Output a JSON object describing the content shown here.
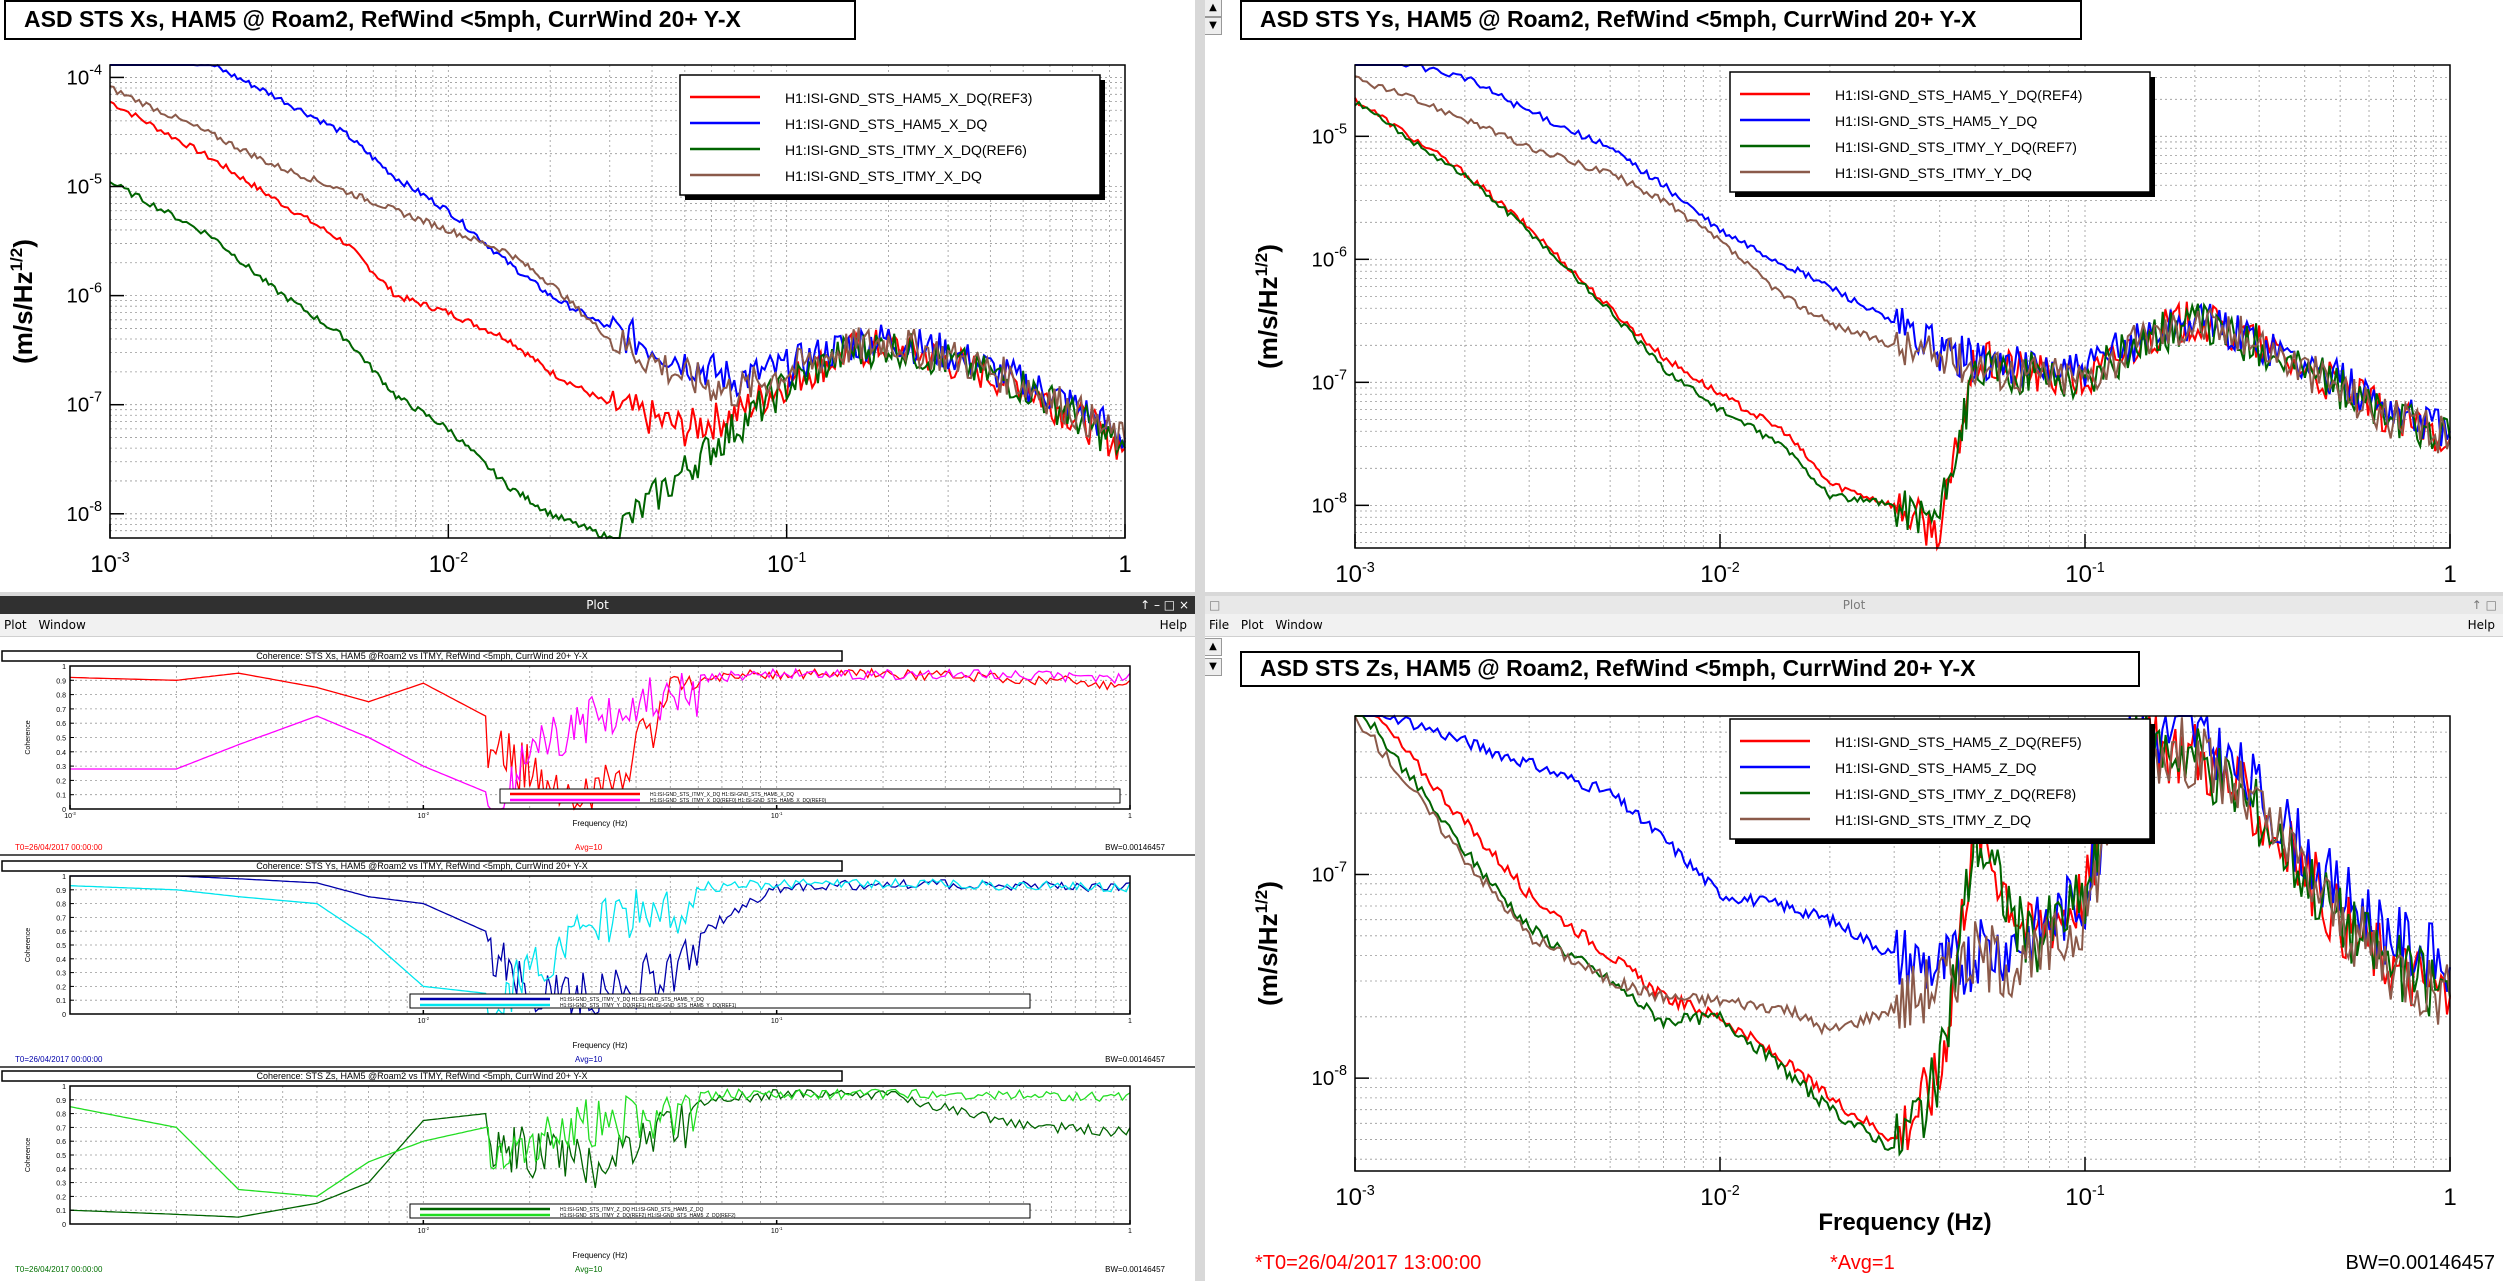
{
  "top_left": {
    "title": "ASD STS Xs, HAM5 @ Roam2, RefWind <5mph, CurrWind 20+ Y-X",
    "ylabel": "(m/s/Hz^1/2)",
    "yticks": [
      "10-4",
      "10-5",
      "10-6",
      "10-7",
      "10-8"
    ],
    "xticks": [
      "10-3",
      "10-2",
      "10-1",
      "1"
    ],
    "legend": [
      "H1:ISI-GND_STS_HAM5_X_DQ(REF3)",
      "H1:ISI-GND_STS_HAM5_X_DQ",
      "H1:ISI-GND_STS_ITMY_X_DQ(REF6)",
      "H1:ISI-GND_STS_ITMY_X_DQ"
    ]
  },
  "top_right": {
    "title": "ASD STS Ys, HAM5 @ Roam2, RefWind <5mph, CurrWind 20+ Y-X",
    "ylabel": "(m/s/Hz^1/2)",
    "yticks": [
      "10-5",
      "10-6",
      "10-7",
      "10-8"
    ],
    "xticks": [
      "10-3",
      "10-2",
      "10-1",
      "1"
    ],
    "legend": [
      "H1:ISI-GND_STS_HAM5_Y_DQ(REF4)",
      "H1:ISI-GND_STS_HAM5_Y_DQ",
      "H1:ISI-GND_STS_ITMY_Y_DQ(REF7)",
      "H1:ISI-GND_STS_ITMY_Y_DQ"
    ]
  },
  "bottom_left": {
    "window_title": "Plot",
    "menu": [
      "Plot",
      "Window"
    ],
    "help": "Help",
    "ylabel": "Coherence",
    "xlabel": "Frequency (Hz)",
    "bw": "BW=0.00146457",
    "t0": "T0=26/04/2017 00:00:00",
    "avg": "Avg=10",
    "coh_yticks": [
      "1",
      "0.9",
      "0.8",
      "0.7",
      "0.6",
      "0.5",
      "0.4",
      "0.3",
      "0.2",
      "0.1",
      "0"
    ],
    "plots": [
      {
        "title": "Coherence: STS Xs, HAM5 @Roam2 vs ITMY, RefWind <5mph, CurrWind 20+ Y-X",
        "legend": [
          "H1:ISI-GND_STS_ITMY_X_DQ H1:ISI-GND_STS_HAM5_X_DQ",
          "H1:ISI-GND_STS_ITMY_X_DQ(REF0) H1:ISI-GND_STS_HAM5_X_DQ(REF0)"
        ],
        "xticks": [
          "10-3",
          "10-2",
          "10-1",
          "1"
        ]
      },
      {
        "title": "Coherence: STS Ys, HAM5 @Roam2 vs ITMY, RefWind <5mph, CurrWind 20+ Y-X",
        "legend": [
          "H1:ISI-GND_STS_ITMY_Y_DQ H1:ISI-GND_STS_HAM5_Y_DQ",
          "H1:ISI-GND_STS_ITMY_Y_DQ(REF1) H1:ISI-GND_STS_HAM5_Y_DQ(REF1)"
        ],
        "xticks": [
          "10-2",
          "10-1",
          "1"
        ]
      },
      {
        "title": "Coherence: STS Zs, HAM5 @Roam2 vs ITMY, RefWind <5mph, CurrWind 20+ Y-X",
        "legend": [
          "H1:ISI-GND_STS_ITMY_Z_DQ H1:ISI-GND_STS_HAM5_Z_DQ",
          "H1:ISI-GND_STS_ITMY_Z_DQ(REF2) H1:ISI-GND_STS_HAM5_Z_DQ(REF2)"
        ],
        "xticks": [
          "10-2",
          "10-1",
          "1"
        ]
      }
    ]
  },
  "bottom_right": {
    "window_title": "Plot",
    "menu": [
      "File",
      "Plot",
      "Window"
    ],
    "help": "Help",
    "title": "ASD STS Zs, HAM5 @ Roam2, RefWind <5mph, CurrWind 20+ Y-X",
    "ylabel": "(m/s/Hz^1/2)",
    "xlabel": "Frequency (Hz)",
    "yticks": [
      "10-7",
      "10-8"
    ],
    "xticks": [
      "10-3",
      "10-2",
      "10-1",
      "1"
    ],
    "legend": [
      "H1:ISI-GND_STS_HAM5_Z_DQ(REF5)",
      "H1:ISI-GND_STS_HAM5_Z_DQ",
      "H1:ISI-GND_STS_ITMY_Z_DQ(REF8)",
      "H1:ISI-GND_STS_ITMY_Z_DQ"
    ],
    "t0": "*T0=26/04/2017 13:00:00",
    "avg": "*Avg=1",
    "bw": "BW=0.00146457"
  },
  "colors": {
    "red": "#ff0000",
    "blue": "#0000ff",
    "green": "#006400",
    "brown": "#8b5a4a",
    "magenta": "#ff00ff",
    "cyan": "#00e5ee",
    "navy": "#0000aa",
    "lime": "#22dd22"
  },
  "chart_data": [
    {
      "type": "line",
      "title": "ASD STS Xs, HAM5 @ Roam2, RefWind <5mph, CurrWind 20+ Y-X",
      "ylabel": "(m/s/Hz^1/2)",
      "x_scale": "log",
      "y_scale": "log",
      "xlim": [
        0.001,
        1
      ],
      "ylim": [
        6e-09,
        0.00013
      ],
      "x": [
        0.001,
        0.002,
        0.003,
        0.005,
        0.007,
        0.01,
        0.015,
        0.02,
        0.03,
        0.05,
        0.07,
        0.1,
        0.15,
        0.2,
        0.3,
        0.5,
        0.7,
        1
      ],
      "series": [
        {
          "name": "H1:ISI-GND_STS_HAM5_X_DQ(REF3)",
          "values": [
            6e-05,
            1.8e-05,
            8e-06,
            3e-06,
            1e-06,
            7e-07,
            4e-07,
            2e-07,
            1e-07,
            6e-08,
            8e-08,
            1.6e-07,
            3e-07,
            3.5e-07,
            2.5e-07,
            1.5e-07,
            8e-08,
            4e-08
          ]
        },
        {
          "name": "H1:ISI-GND_STS_HAM5_X_DQ",
          "values": [
            0.00018,
            0.00013,
            7e-05,
            3e-05,
            1.2e-05,
            6e-06,
            2e-06,
            1e-06,
            5e-07,
            2.5e-07,
            1.7e-07,
            2.2e-07,
            3.5e-07,
            4e-07,
            3e-07,
            1.6e-07,
            1e-07,
            5e-08
          ]
        },
        {
          "name": "H1:ISI-GND_STS_ITMY_X_DQ(REF6)",
          "values": [
            1.1e-05,
            3.5e-06,
            1.2e-06,
            4e-07,
            1.2e-07,
            6e-08,
            1.8e-08,
            1e-08,
            6e-09,
            2.5e-08,
            6e-08,
            1.5e-07,
            3e-07,
            3.5e-07,
            2.5e-07,
            1.5e-07,
            8e-08,
            4e-08
          ]
        },
        {
          "name": "H1:ISI-GND_STS_ITMY_X_DQ",
          "values": [
            8e-05,
            3e-05,
            1.6e-05,
            9e-06,
            6e-06,
            4e-06,
            2.5e-06,
            1.3e-06,
            4e-07,
            1.8e-07,
            1.3e-07,
            2e-07,
            3.3e-07,
            3.8e-07,
            2.8e-07,
            1.6e-07,
            9e-08,
            4.5e-08
          ]
        }
      ]
    },
    {
      "type": "line",
      "title": "ASD STS Ys, HAM5 @ Roam2, RefWind <5mph, CurrWind 20+ Y-X",
      "ylabel": "(m/s/Hz^1/2)",
      "x_scale": "log",
      "y_scale": "log",
      "xlim": [
        0.001,
        1
      ],
      "ylim": [
        4.5e-09,
        3.8e-05
      ],
      "x": [
        0.001,
        0.002,
        0.003,
        0.005,
        0.007,
        0.01,
        0.015,
        0.02,
        0.03,
        0.04,
        0.05,
        0.07,
        0.1,
        0.15,
        0.2,
        0.3,
        0.5,
        0.7,
        1
      ],
      "series": [
        {
          "name": "H1:ISI-GND_STS_HAM5_Y_DQ(REF4)",
          "values": [
            2e-05,
            5e-06,
            1.8e-06,
            4e-07,
            1.6e-07,
            8e-08,
            4e-08,
            1.5e-08,
            1e-08,
            6e-09,
            1.5e-07,
            1.2e-07,
            1e-07,
            2.5e-07,
            3.2e-07,
            2e-07,
            9e-08,
            5e-08,
            3.5e-08
          ]
        },
        {
          "name": "H1:ISI-GND_STS_HAM5_Y_DQ",
          "values": [
            5e-05,
            3e-05,
            1.6e-05,
            8e-06,
            4e-06,
            1.7e-06,
            9e-07,
            6e-07,
            3e-07,
            1.8e-07,
            1.5e-07,
            1.3e-07,
            1.2e-07,
            2.5e-07,
            3.2e-07,
            2.2e-07,
            1e-07,
            6e-08,
            4e-08
          ]
        },
        {
          "name": "H1:ISI-GND_STS_ITMY_Y_DQ(REF7)",
          "values": [
            1.9e-05,
            4.8e-06,
            1.7e-06,
            3.8e-07,
            1.3e-07,
            6e-08,
            3e-08,
            1.2e-08,
            1e-08,
            8e-09,
            1.2e-07,
            1.2e-07,
            1e-07,
            2.4e-07,
            3.1e-07,
            2e-07,
            9e-08,
            5e-08,
            3.5e-08
          ]
        },
        {
          "name": "H1:ISI-GND_STS_ITMY_Y_DQ",
          "values": [
            3e-05,
            1.4e-05,
            8e-06,
            5e-06,
            3e-06,
            1.4e-06,
            5e-07,
            3e-07,
            2e-07,
            1.6e-07,
            1.4e-07,
            1.2e-07,
            1.1e-07,
            2.4e-07,
            3.1e-07,
            2.1e-07,
            9e-08,
            5e-08,
            3.5e-08
          ]
        }
      ]
    },
    {
      "type": "line",
      "title": "Coherence: STS Xs, HAM5 @Roam2 vs ITMY, RefWind <5mph, CurrWind 20+ Y-X",
      "ylabel": "Coherence",
      "xlabel": "Frequency (Hz)",
      "x_scale": "log",
      "xlim": [
        0.001,
        1
      ],
      "ylim": [
        0,
        1
      ],
      "x": [
        0.001,
        0.002,
        0.003,
        0.005,
        0.007,
        0.01,
        0.015,
        0.02,
        0.03,
        0.05,
        0.1,
        0.2,
        0.5,
        1
      ],
      "series": [
        {
          "name": "H1:ISI-GND_STS_ITMY_X_DQ H1:ISI-GND_STS_HAM5_X_DQ",
          "values": [
            0.92,
            0.9,
            0.95,
            0.85,
            0.75,
            0.88,
            0.65,
            0.45,
            0.2,
            0.95,
            0.98,
            0.98,
            0.95,
            0.9
          ]
        },
        {
          "name": "H1:ISI-GND_STS_ITMY_X_DQ(REF0) H1:ISI-GND_STS_HAM5_X_DQ(REF0)",
          "values": [
            0.28,
            0.28,
            0.45,
            0.65,
            0.5,
            0.3,
            0.12,
            0.55,
            0.85,
            0.95,
            0.98,
            0.98,
            0.97,
            0.95
          ]
        }
      ]
    },
    {
      "type": "line",
      "title": "Coherence: STS Ys, HAM5 @Roam2 vs ITMY, RefWind <5mph, CurrWind 20+ Y-X",
      "ylabel": "Coherence",
      "xlabel": "Frequency (Hz)",
      "x_scale": "log",
      "xlim": [
        0.001,
        1
      ],
      "ylim": [
        0,
        1
      ],
      "x": [
        0.001,
        0.002,
        0.003,
        0.005,
        0.007,
        0.01,
        0.015,
        0.02,
        0.03,
        0.05,
        0.1,
        0.2,
        0.5,
        1
      ],
      "series": [
        {
          "name": "H1:ISI-GND_STS_ITMY_Y_DQ H1:ISI-GND_STS_HAM5_Y_DQ",
          "values": [
            1,
            1,
            0.98,
            0.95,
            0.85,
            0.8,
            0.6,
            0.4,
            0.3,
            0.5,
            0.95,
            0.98,
            0.97,
            0.95
          ]
        },
        {
          "name": "H1:ISI-GND_STS_ITMY_Y_DQ(REF1) H1:ISI-GND_STS_HAM5_Y_DQ(REF1)",
          "values": [
            0.93,
            0.9,
            0.85,
            0.8,
            0.55,
            0.2,
            0.15,
            0.5,
            0.85,
            0.95,
            0.98,
            0.98,
            0.97,
            0.95
          ]
        }
      ]
    },
    {
      "type": "line",
      "title": "Coherence: STS Zs, HAM5 @Roam2 vs ITMY, RefWind <5mph, CurrWind 20+ Y-X",
      "ylabel": "Coherence",
      "xlabel": "Frequency (Hz)",
      "x_scale": "log",
      "xlim": [
        0.001,
        1
      ],
      "ylim": [
        0,
        1
      ],
      "x": [
        0.001,
        0.002,
        0.003,
        0.005,
        0.007,
        0.01,
        0.015,
        0.02,
        0.03,
        0.05,
        0.1,
        0.2,
        0.5,
        1
      ],
      "series": [
        {
          "name": "H1:ISI-GND_STS_ITMY_Z_DQ H1:ISI-GND_STS_HAM5_Z_DQ",
          "values": [
            0.1,
            0.07,
            0.05,
            0.15,
            0.3,
            0.75,
            0.8,
            0.7,
            0.6,
            0.9,
            0.98,
            0.98,
            0.75,
            0.7
          ]
        },
        {
          "name": "H1:ISI-GND_STS_ITMY_Z_DQ(REF2) H1:ISI-GND_STS_HAM5_Z_DQ(REF2)",
          "values": [
            0.85,
            0.7,
            0.25,
            0.2,
            0.45,
            0.6,
            0.7,
            0.8,
            0.92,
            0.97,
            0.98,
            0.98,
            0.97,
            0.95
          ]
        }
      ]
    },
    {
      "type": "line",
      "title": "ASD STS Zs, HAM5 @ Roam2, RefWind <5mph, CurrWind 20+ Y-X",
      "ylabel": "(m/s/Hz^1/2)",
      "xlabel": "Frequency (Hz)",
      "x_scale": "log",
      "y_scale": "log",
      "xlim": [
        0.001,
        1
      ],
      "ylim": [
        3.5e-09,
        6e-07
      ],
      "x": [
        0.001,
        0.002,
        0.003,
        0.005,
        0.007,
        0.01,
        0.015,
        0.02,
        0.03,
        0.04,
        0.05,
        0.07,
        0.1,
        0.13,
        0.2,
        0.3,
        0.5,
        0.7,
        1
      ],
      "series": [
        {
          "name": "H1:ISI-GND_STS_HAM5_Z_DQ(REF5)",
          "values": [
            8e-07,
            1.8e-07,
            8e-08,
            4e-08,
            2.5e-08,
            2e-08,
            1.2e-08,
            8e-09,
            5e-09,
            1e-08,
            1.8e-07,
            5e-08,
            8e-08,
            4.5e-07,
            4e-07,
            2e-07,
            6e-08,
            3.5e-08,
            2.5e-08
          ]
        },
        {
          "name": "H1:ISI-GND_STS_HAM5_Z_DQ",
          "values": [
            7e-07,
            4.5e-07,
            3.5e-07,
            2.5e-07,
            1.5e-07,
            8e-08,
            7e-08,
            6e-08,
            4e-08,
            3.5e-08,
            4e-08,
            5e-08,
            8e-08,
            4.8e-07,
            5e-07,
            2.5e-07,
            8e-08,
            5e-08,
            3.5e-08
          ]
        },
        {
          "name": "H1:ISI-GND_STS_ITMY_Z_DQ(REF8)",
          "values": [
            7e-07,
            1.3e-07,
            5.5e-08,
            3e-08,
            1.9e-08,
            2e-08,
            1.1e-08,
            7e-09,
            4.5e-09,
            1e-08,
            1.6e-07,
            4.5e-08,
            7.5e-08,
            4.4e-07,
            4e-07,
            2e-07,
            6e-08,
            3.5e-08,
            2.5e-08
          ]
        },
        {
          "name": "H1:ISI-GND_STS_ITMY_Z_DQ",
          "values": [
            6e-07,
            1.2e-07,
            5e-08,
            3e-08,
            2.5e-08,
            2.4e-08,
            2.2e-08,
            1.7e-08,
            2.2e-08,
            3e-08,
            4e-08,
            3.5e-08,
            6e-08,
            4.2e-07,
            3.9e-07,
            2e-07,
            6e-08,
            3.5e-08,
            2.5e-08
          ]
        }
      ]
    }
  ]
}
